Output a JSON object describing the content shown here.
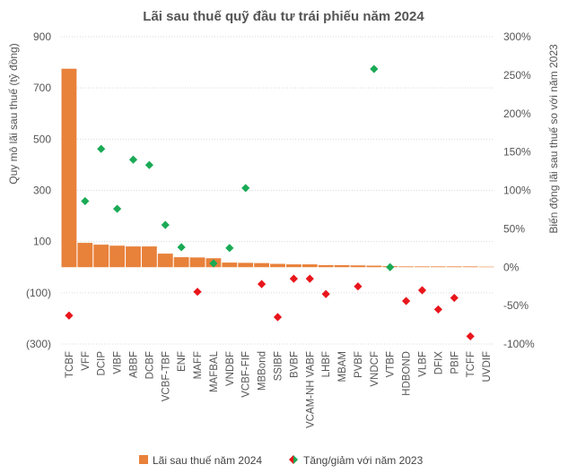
{
  "chart_data": {
    "type": "bar",
    "title": "Lãi sau thuế quỹ đầu tư trái phiếu năm 2024",
    "ylabel": "Quy mô lãi sau thuế (tỷ đồng)",
    "y2label": "Biến động lãi sau thuế so với năm 2023",
    "ylim": [
      -300,
      900
    ],
    "y2lim": [
      -100,
      300
    ],
    "yticks": [
      "900",
      "700",
      "500",
      "300",
      "100",
      "(100)",
      "(300)"
    ],
    "y2ticks": [
      "300%",
      "250%",
      "200%",
      "150%",
      "100%",
      "50%",
      "0%",
      "-50%",
      "-100%"
    ],
    "grid": true,
    "legend_position": "bottom",
    "categories": [
      "TCBF",
      "VFF",
      "DCIP",
      "VIBF",
      "ABBF",
      "DCBF",
      "VCBF-TBF",
      "ENF",
      "MAFF",
      "MAFBAL",
      "VNDBF",
      "VCBF-FIF",
      "MBBond",
      "SSIBF",
      "BVBF",
      "VCAM-NH VABF",
      "LHBF",
      "MBAM",
      "PVBF",
      "VNDCF",
      "VTBF",
      "HDBOND",
      "VLBF",
      "DFIX",
      "PBIF",
      "TCFF",
      "UVDIF"
    ],
    "series": [
      {
        "name": "Lãi sau thuế năm 2024",
        "kind": "bar",
        "axis": "left",
        "color": "#E8813A",
        "values": [
          775,
          95,
          88,
          84,
          81,
          81,
          53,
          39,
          38,
          35,
          18,
          17,
          16,
          13,
          11,
          11,
          8,
          8,
          7,
          6,
          4,
          3,
          3,
          3,
          3,
          3,
          2
        ]
      },
      {
        "name": "Tăng/giảm với năm 2023",
        "kind": "marker",
        "axis": "right",
        "colors": {
          "up": "#1AAA55",
          "down": "#E8151B"
        },
        "values": [
          -63,
          86,
          154,
          76,
          140,
          133,
          55,
          26,
          -32,
          5,
          25,
          103,
          -22,
          -65,
          -15,
          -15,
          -35,
          null,
          -25,
          258,
          0,
          -44,
          -30,
          -55,
          -40,
          -90,
          null
        ]
      }
    ]
  }
}
